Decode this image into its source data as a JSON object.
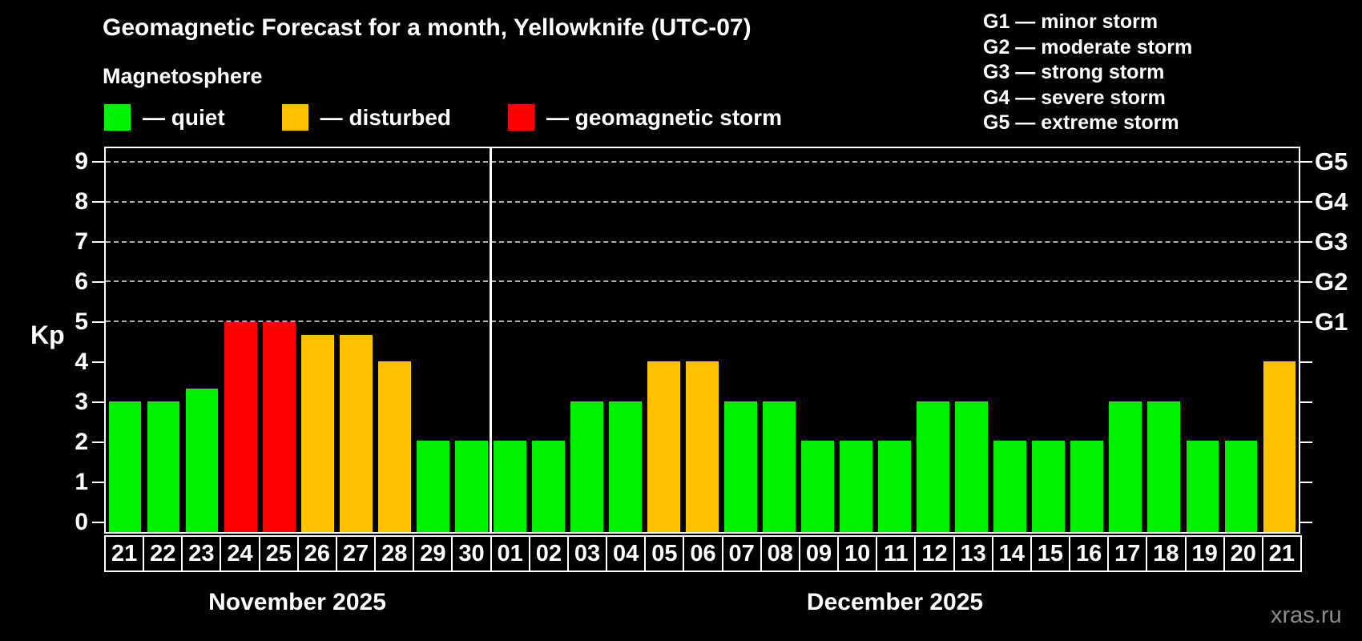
{
  "title": "Geomagnetic Forecast for a month, Yellowknife (UTC-07)",
  "subtitle": "Magnetosphere",
  "legend": {
    "items": [
      {
        "name": "quiet",
        "label": "— quiet",
        "color": "#00f000"
      },
      {
        "name": "disturbed",
        "label": "— disturbed",
        "color": "#ffc000"
      },
      {
        "name": "geomagnetic-storm",
        "label": "— geomagnetic storm",
        "color": "#ff0000"
      }
    ]
  },
  "g_legend": [
    "G1 — minor storm",
    "G2 — moderate storm",
    "G3 — strong storm",
    "G4 — severe storm",
    "G5 — extreme storm"
  ],
  "watermark": "xras.ru",
  "chart_data": {
    "type": "bar",
    "title": "Geomagnetic Forecast for a month, Yellowknife (UTC-07)",
    "xlabel": "",
    "ylabel": "Kp",
    "ylim": [
      -0.29,
      9.37
    ],
    "y_ticks": [
      0,
      1,
      2,
      3,
      4,
      5,
      6,
      7,
      8,
      9
    ],
    "gridlines_at": [
      5,
      6,
      7,
      8,
      9
    ],
    "grid": "dashed horizontal at storm levels only",
    "right_axis_labels": [
      {
        "label": "G1",
        "kp": 5
      },
      {
        "label": "G2",
        "kp": 6
      },
      {
        "label": "G3",
        "kp": 7
      },
      {
        "label": "G4",
        "kp": 8
      },
      {
        "label": "G5",
        "kp": 9
      }
    ],
    "months": [
      {
        "label": "November 2025",
        "days": 10
      },
      {
        "label": "December 2025",
        "days": 21
      }
    ],
    "categories": [
      "21",
      "22",
      "23",
      "24",
      "25",
      "26",
      "27",
      "28",
      "29",
      "30",
      "01",
      "02",
      "03",
      "04",
      "05",
      "06",
      "07",
      "08",
      "09",
      "10",
      "11",
      "12",
      "13",
      "14",
      "15",
      "16",
      "17",
      "18",
      "19",
      "20",
      "21"
    ],
    "values": [
      3,
      3,
      3.33,
      5,
      5,
      4.67,
      4.67,
      4,
      2,
      2,
      2,
      2,
      3,
      3,
      4,
      4,
      3,
      3,
      2,
      2,
      2,
      3,
      3,
      2,
      2,
      2,
      3,
      3,
      2,
      2,
      4
    ],
    "statuses": [
      "quiet",
      "quiet",
      "quiet",
      "storm",
      "storm",
      "disturbed",
      "disturbed",
      "disturbed",
      "quiet",
      "quiet",
      "quiet",
      "quiet",
      "quiet",
      "quiet",
      "disturbed",
      "disturbed",
      "quiet",
      "quiet",
      "quiet",
      "quiet",
      "quiet",
      "quiet",
      "quiet",
      "quiet",
      "quiet",
      "quiet",
      "quiet",
      "quiet",
      "quiet",
      "quiet",
      "disturbed"
    ],
    "colors_by_status": {
      "quiet": "#00f000",
      "disturbed": "#ffc000",
      "storm": "#ff0000"
    },
    "legend_position": "top-left"
  }
}
